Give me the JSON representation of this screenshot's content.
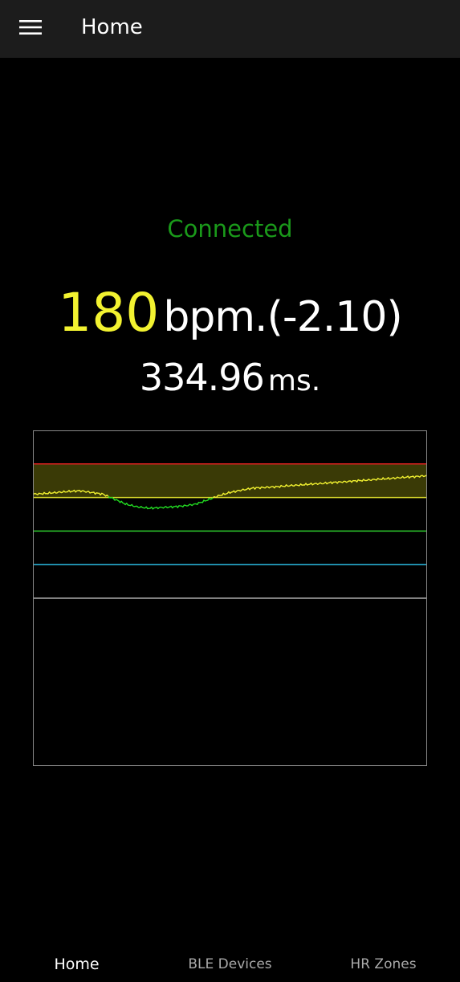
{
  "app_bar": {
    "title": "Home",
    "menu_icon": "hamburger-menu-icon"
  },
  "status": {
    "text": "Connected",
    "color": "#1a9a1a"
  },
  "heart_rate": {
    "value": "180",
    "unit_delta": "bpm.(-2.10)",
    "value_color": "#f2f230"
  },
  "rr_interval": {
    "value": "334.96",
    "unit": "ms."
  },
  "chart_data": {
    "type": "line",
    "title": "",
    "xlabel": "",
    "ylabel": "",
    "ylim": [
      0,
      10
    ],
    "grid": false,
    "zone_lines": [
      {
        "y": 9,
        "color": "#e02020"
      },
      {
        "y": 8,
        "color": "#d6d62a"
      },
      {
        "y": 7,
        "color": "#2ecc2e"
      },
      {
        "y": 6,
        "color": "#2ab8e0"
      },
      {
        "y": 5,
        "color": "#aaaaaa"
      }
    ],
    "highlight_band": {
      "from": 8,
      "to": 9,
      "color": "#3a3a06"
    },
    "series": [
      {
        "color_in_band": "#f2f230",
        "color_below_band": "#22dd22",
        "values": [
          8.1,
          8.12,
          8.15,
          8.18,
          8.2,
          8.15,
          8.1,
          7.95,
          7.8,
          7.72,
          7.68,
          7.7,
          7.72,
          7.75,
          7.8,
          7.92,
          8.05,
          8.15,
          8.22,
          8.28,
          8.3,
          8.32,
          8.35,
          8.37,
          8.4,
          8.42,
          8.45,
          8.47,
          8.5,
          8.52,
          8.55,
          8.57,
          8.6,
          8.62,
          8.65
        ]
      }
    ]
  },
  "bottom_nav": {
    "items": [
      {
        "label": "Home",
        "active": true
      },
      {
        "label": "BLE Devices",
        "active": false
      },
      {
        "label": "HR Zones",
        "active": false
      }
    ]
  }
}
